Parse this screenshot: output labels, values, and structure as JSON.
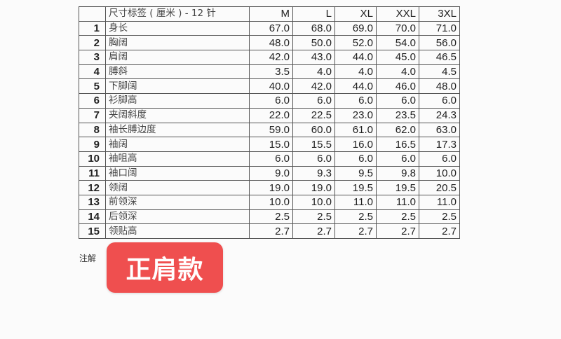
{
  "table": {
    "header": {
      "label": "尺寸标签 ( 厘米 ) - 12 针",
      "sizes": [
        "M",
        "L",
        "XL",
        "XXL",
        "3XL"
      ]
    },
    "rows": [
      {
        "n": "1",
        "label": "身长",
        "values": [
          "67.0",
          "68.0",
          "69.0",
          "70.0",
          "71.0"
        ]
      },
      {
        "n": "2",
        "label": "胸阔",
        "values": [
          "48.0",
          "50.0",
          "52.0",
          "54.0",
          "56.0"
        ]
      },
      {
        "n": "3",
        "label": "肩阔",
        "values": [
          "42.0",
          "43.0",
          "44.0",
          "45.0",
          "46.5"
        ]
      },
      {
        "n": "4",
        "label": "膊斜",
        "values": [
          "3.5",
          "4.0",
          "4.0",
          "4.0",
          "4.5"
        ]
      },
      {
        "n": "5",
        "label": "下脚阔",
        "values": [
          "40.0",
          "42.0",
          "44.0",
          "46.0",
          "48.0"
        ]
      },
      {
        "n": "6",
        "label": "衫脚高",
        "values": [
          "6.0",
          "6.0",
          "6.0",
          "6.0",
          "6.0"
        ]
      },
      {
        "n": "7",
        "label": "夹阔斜度",
        "values": [
          "22.0",
          "22.5",
          "23.0",
          "23.5",
          "24.3"
        ]
      },
      {
        "n": "8",
        "label": "袖长膊边度",
        "values": [
          "59.0",
          "60.0",
          "61.0",
          "62.0",
          "63.0"
        ]
      },
      {
        "n": "9",
        "label": "袖阔",
        "values": [
          "15.0",
          "15.5",
          "16.0",
          "16.5",
          "17.3"
        ]
      },
      {
        "n": "10",
        "label": "袖咀高",
        "values": [
          "6.0",
          "6.0",
          "6.0",
          "6.0",
          "6.0"
        ]
      },
      {
        "n": "11",
        "label": "袖口阔",
        "values": [
          "9.0",
          "9.3",
          "9.5",
          "9.8",
          "10.0"
        ]
      },
      {
        "n": "12",
        "label": "领阔",
        "values": [
          "19.0",
          "19.0",
          "19.5",
          "19.5",
          "20.5"
        ]
      },
      {
        "n": "13",
        "label": "前领深",
        "values": [
          "10.0",
          "10.0",
          "11.0",
          "11.0",
          "11.0"
        ]
      },
      {
        "n": "14",
        "label": "后领深",
        "values": [
          "2.5",
          "2.5",
          "2.5",
          "2.5",
          "2.5"
        ]
      },
      {
        "n": "15",
        "label": "领贴高",
        "values": [
          "2.7",
          "2.7",
          "2.7",
          "2.7",
          "2.7"
        ]
      }
    ]
  },
  "note_label": "注解",
  "badge": {
    "text": "正肩款",
    "color": "#ef4f4f"
  }
}
